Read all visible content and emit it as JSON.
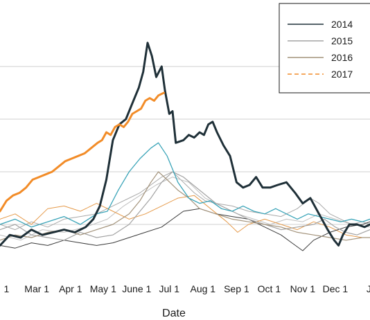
{
  "chart_data": {
    "type": "line",
    "title": "",
    "xlabel": "Date",
    "ylabel": "",
    "x_range_day_of_year": [
      26,
      367
    ],
    "y_range": [
      0,
      100
    ],
    "x_ticks": [
      {
        "label": "1",
        "day": 32
      },
      {
        "label": "Mar 1",
        "day": 60
      },
      {
        "label": "Apr 1",
        "day": 91
      },
      {
        "label": "May 1",
        "day": 121
      },
      {
        "label": "June 1",
        "day": 152
      },
      {
        "label": "Jul 1",
        "day": 182
      },
      {
        "label": "Aug 1",
        "day": 213
      },
      {
        "label": "Sep 1",
        "day": 244
      },
      {
        "label": "Oct 1",
        "day": 274
      },
      {
        "label": "Nov 1",
        "day": 305
      },
      {
        "label": "Dec 1",
        "day": 335
      },
      {
        "label": "J",
        "day": 366
      }
    ],
    "y_gridlines": [
      20,
      40,
      60,
      80
    ],
    "grid": true,
    "legend_position": "top-right",
    "legend": [
      {
        "label": "2014",
        "color": "#1f3038",
        "dash": "solid"
      },
      {
        "label": "2015",
        "color": "#a3a3a3",
        "dash": "solid"
      },
      {
        "label": "2016",
        "color": "#a3937b",
        "dash": "solid"
      },
      {
        "label": "2017",
        "color": "#f28c28",
        "dash": "dashed"
      }
    ],
    "series": [
      {
        "name": "2014",
        "color": "#1f3038",
        "width": 3.0,
        "x": [
          26,
          35,
          45,
          55,
          65,
          75,
          85,
          95,
          105,
          112,
          118,
          124,
          130,
          136,
          142,
          148,
          154,
          158,
          162,
          166,
          170,
          175,
          178,
          182,
          185,
          188,
          195,
          200,
          205,
          210,
          214,
          218,
          222,
          226,
          232,
          238,
          244,
          250,
          256,
          262,
          268,
          275,
          282,
          290,
          298,
          305,
          312,
          320,
          328,
          334,
          338,
          342,
          348,
          355,
          362,
          367
        ],
        "y": [
          12,
          16,
          15,
          18,
          16,
          17,
          18,
          17,
          19,
          22,
          27,
          37,
          52,
          58,
          60,
          66,
          72,
          78,
          89,
          84,
          76,
          80,
          71,
          62,
          63,
          51,
          52,
          54,
          53,
          55,
          54,
          58,
          59,
          55,
          50,
          46,
          36,
          34,
          35,
          38,
          34,
          34,
          35,
          36,
          32,
          28,
          30,
          24,
          18,
          14,
          12,
          16,
          20,
          20,
          19,
          20
        ]
      },
      {
        "name": "2017",
        "color": "#f28c28",
        "width": 3.0,
        "x": [
          26,
          32,
          38,
          44,
          50,
          56,
          62,
          68,
          74,
          80,
          86,
          92,
          98,
          104,
          110,
          116,
          120,
          124,
          128,
          132,
          136,
          140,
          144,
          148,
          152,
          156,
          160,
          164,
          168,
          172,
          177
        ],
        "y": [
          25,
          29,
          31,
          32,
          34,
          37,
          38,
          39,
          40,
          42,
          44,
          45,
          46,
          47,
          49,
          51,
          52,
          55,
          54,
          57,
          58,
          57,
          59,
          62,
          63,
          64,
          67,
          68,
          67,
          69,
          70
        ]
      },
      {
        "name": "",
        "color": "#3aa4b8",
        "width": 1.3,
        "x": [
          26,
          40,
          55,
          70,
          85,
          100,
          115,
          125,
          135,
          145,
          155,
          165,
          172,
          180,
          190,
          200,
          210,
          220,
          230,
          240,
          250,
          260,
          270,
          280,
          290,
          300,
          310,
          320,
          330,
          340,
          350,
          360,
          367
        ],
        "y": [
          20,
          22,
          19,
          21,
          23,
          20,
          24,
          25,
          33,
          40,
          45,
          49,
          51,
          46,
          36,
          30,
          28,
          29,
          26,
          25,
          27,
          25,
          24,
          26,
          24,
          22,
          24,
          23,
          22,
          21,
          22,
          21,
          22
        ]
      },
      {
        "name": "2015",
        "color": "#a3a3a3",
        "width": 1.2,
        "x": [
          26,
          40,
          55,
          70,
          85,
          100,
          115,
          130,
          145,
          155,
          165,
          175,
          185,
          195,
          210,
          225,
          240,
          255,
          270,
          285,
          300,
          315,
          325,
          335,
          345,
          355,
          367
        ],
        "y": [
          18,
          20,
          16,
          15,
          14,
          17,
          15,
          16,
          20,
          25,
          30,
          36,
          40,
          38,
          33,
          28,
          25,
          22,
          20,
          18,
          19,
          20,
          22,
          19,
          17,
          16,
          18
        ]
      },
      {
        "name": "2016",
        "color": "#a3937b",
        "width": 1.2,
        "x": [
          26,
          40,
          55,
          70,
          85,
          100,
          115,
          130,
          145,
          155,
          165,
          172,
          180,
          190,
          200,
          210,
          225,
          240,
          255,
          270,
          285,
          300,
          315,
          330,
          345,
          360,
          367
        ],
        "y": [
          14,
          16,
          15,
          17,
          18,
          16,
          18,
          20,
          24,
          29,
          36,
          40,
          37,
          33,
          30,
          26,
          24,
          22,
          21,
          20,
          19,
          17,
          16,
          15,
          14,
          15,
          15
        ]
      },
      {
        "name": "",
        "color": "#a8a8a8",
        "width": 1.0,
        "x": [
          26,
          40,
          55,
          70,
          85,
          100,
          115,
          125,
          135,
          145,
          155,
          165,
          175,
          185,
          195,
          205,
          215,
          225,
          240,
          255,
          270,
          285,
          300,
          312,
          320,
          330,
          340,
          350,
          360,
          367
        ],
        "y": [
          20,
          18,
          21,
          19,
          22,
          23,
          24,
          26,
          28,
          30,
          32,
          35,
          38,
          40,
          36,
          32,
          29,
          28,
          27,
          25,
          24,
          23,
          26,
          30,
          28,
          24,
          22,
          20,
          21,
          20
        ]
      },
      {
        "name": "",
        "color": "#bfbfbf",
        "width": 1.0,
        "x": [
          26,
          45,
          65,
          85,
          105,
          125,
          140,
          155,
          170,
          185,
          200,
          215,
          230,
          245,
          260,
          275,
          290,
          305,
          320,
          335,
          350,
          367
        ],
        "y": [
          16,
          14,
          18,
          17,
          19,
          22,
          27,
          31,
          35,
          38,
          36,
          30,
          27,
          24,
          22,
          20,
          22,
          21,
          24,
          22,
          20,
          19
        ]
      },
      {
        "name": "",
        "color": "#e59a4a",
        "width": 1.0,
        "x": [
          26,
          40,
          55,
          70,
          85,
          100,
          115,
          130,
          145,
          160,
          175,
          190,
          205,
          220,
          235,
          245,
          255,
          270,
          285,
          300,
          315,
          330,
          345,
          360,
          367
        ],
        "y": [
          22,
          24,
          20,
          26,
          27,
          25,
          28,
          25,
          22,
          24,
          27,
          30,
          31,
          26,
          21,
          17,
          20,
          22,
          20,
          18,
          21,
          19,
          16,
          15,
          15
        ]
      },
      {
        "name": "",
        "color": "#3a3a3a",
        "width": 1.0,
        "x": [
          26,
          40,
          55,
          70,
          85,
          100,
          115,
          130,
          145,
          160,
          175,
          185,
          195,
          210,
          225,
          240,
          255,
          270,
          285,
          295,
          305,
          315,
          330,
          345,
          360,
          367
        ],
        "y": [
          12,
          11,
          13,
          12,
          14,
          13,
          12,
          13,
          15,
          17,
          19,
          22,
          25,
          26,
          24,
          23,
          22,
          19,
          16,
          13,
          10,
          14,
          17,
          19,
          20,
          21
        ]
      }
    ]
  }
}
